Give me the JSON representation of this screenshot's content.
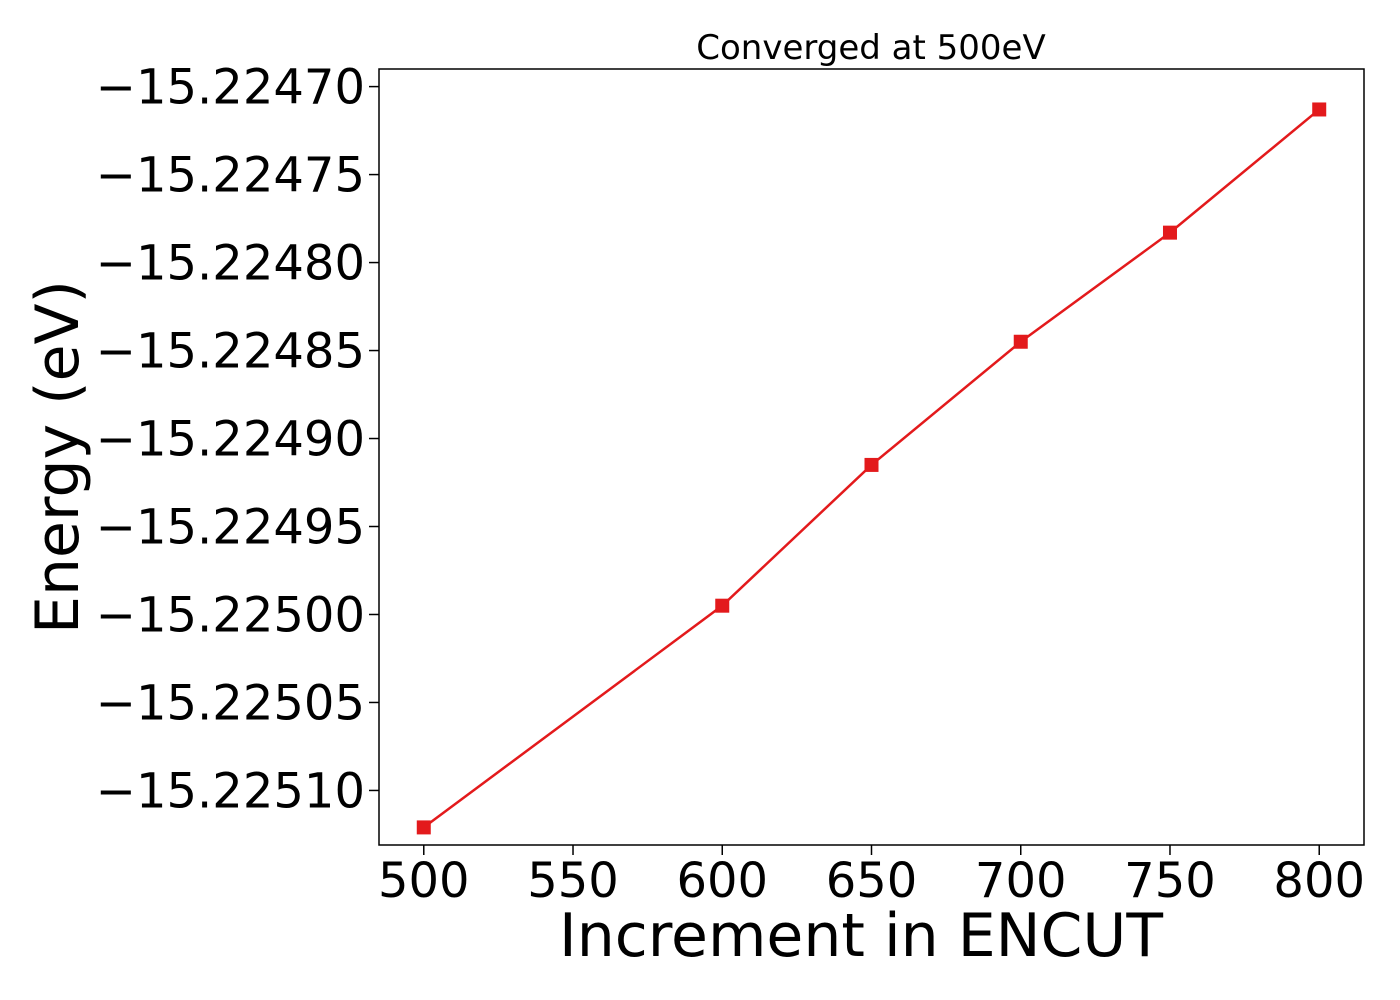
{
  "chart_data": {
    "type": "line",
    "title": "Converged at 500eV",
    "xlabel": "Increment in ENCUT",
    "ylabel": "Energy (eV)",
    "xlim": [
      485,
      815
    ],
    "ylim": [
      -15.225131,
      -15.22469
    ],
    "xticks": [
      500,
      550,
      600,
      650,
      700,
      750,
      800
    ],
    "yticks": [
      -15.2247,
      -15.22475,
      -15.2248,
      -15.22485,
      -15.2249,
      -15.22495,
      -15.225,
      -15.22505,
      -15.2251
    ],
    "ytick_labels": [
      "−15.22470",
      "−15.22475",
      "−15.22480",
      "−15.22485",
      "−15.22490",
      "−15.22495",
      "−15.22500",
      "−15.22505",
      "−15.22510"
    ],
    "grid": false,
    "series": [
      {
        "color": "#e31a1c",
        "marker": "square",
        "x": [
          500,
          600,
          650,
          700,
          750,
          800
        ],
        "y": [
          -15.225121,
          -15.224995,
          -15.224915,
          -15.224845,
          -15.224783,
          -15.224713
        ]
      }
    ]
  }
}
